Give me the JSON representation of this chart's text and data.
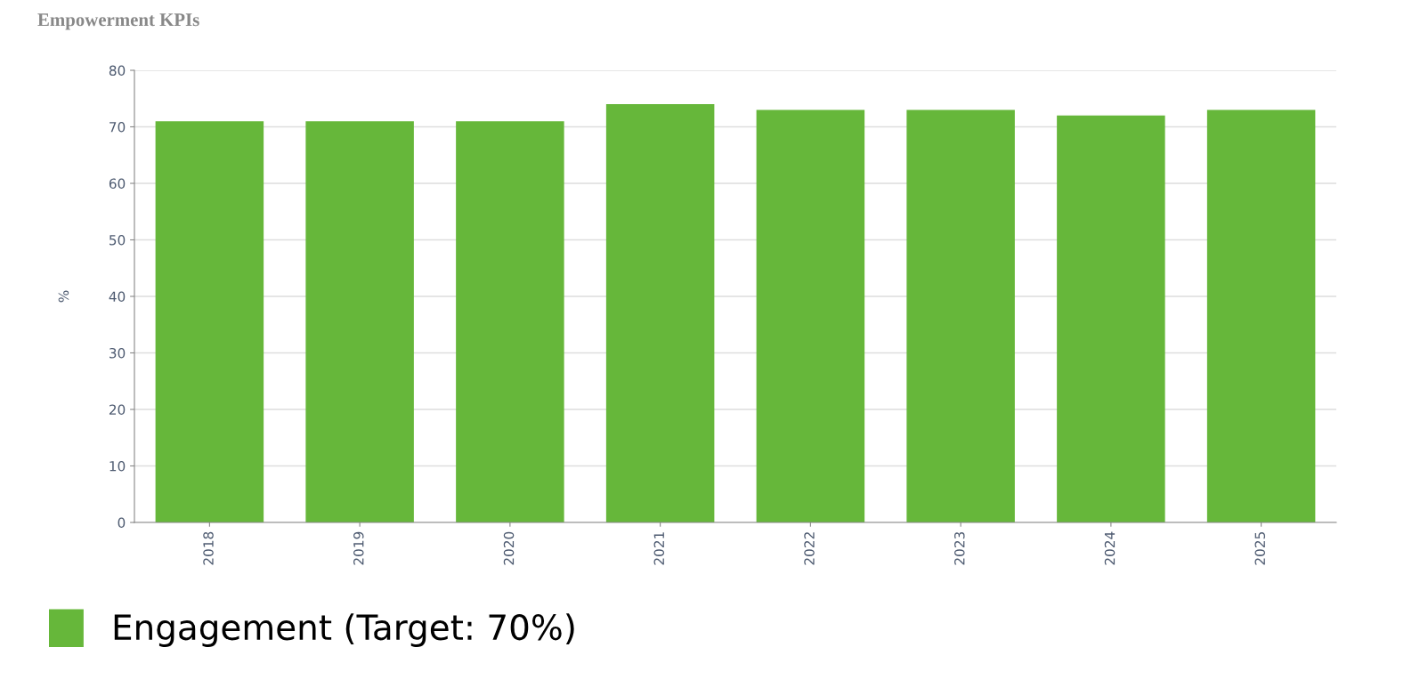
{
  "chart_data": {
    "type": "bar",
    "title": "Empowerment KPIs",
    "ylabel": "%",
    "categories": [
      "2018",
      "2019",
      "2020",
      "2021",
      "2022",
      "2023",
      "2024",
      "2025"
    ],
    "series": [
      {
        "name": "Engagement (Target: 70%)",
        "color": "#66b73a",
        "values": [
          71,
          71,
          71,
          74,
          73,
          73,
          72,
          73
        ]
      }
    ],
    "ylim": [
      0,
      80
    ],
    "yticks": [
      0,
      10,
      20,
      30,
      40,
      50,
      60,
      70,
      80
    ],
    "grid": "y",
    "legend": "bottom left"
  }
}
